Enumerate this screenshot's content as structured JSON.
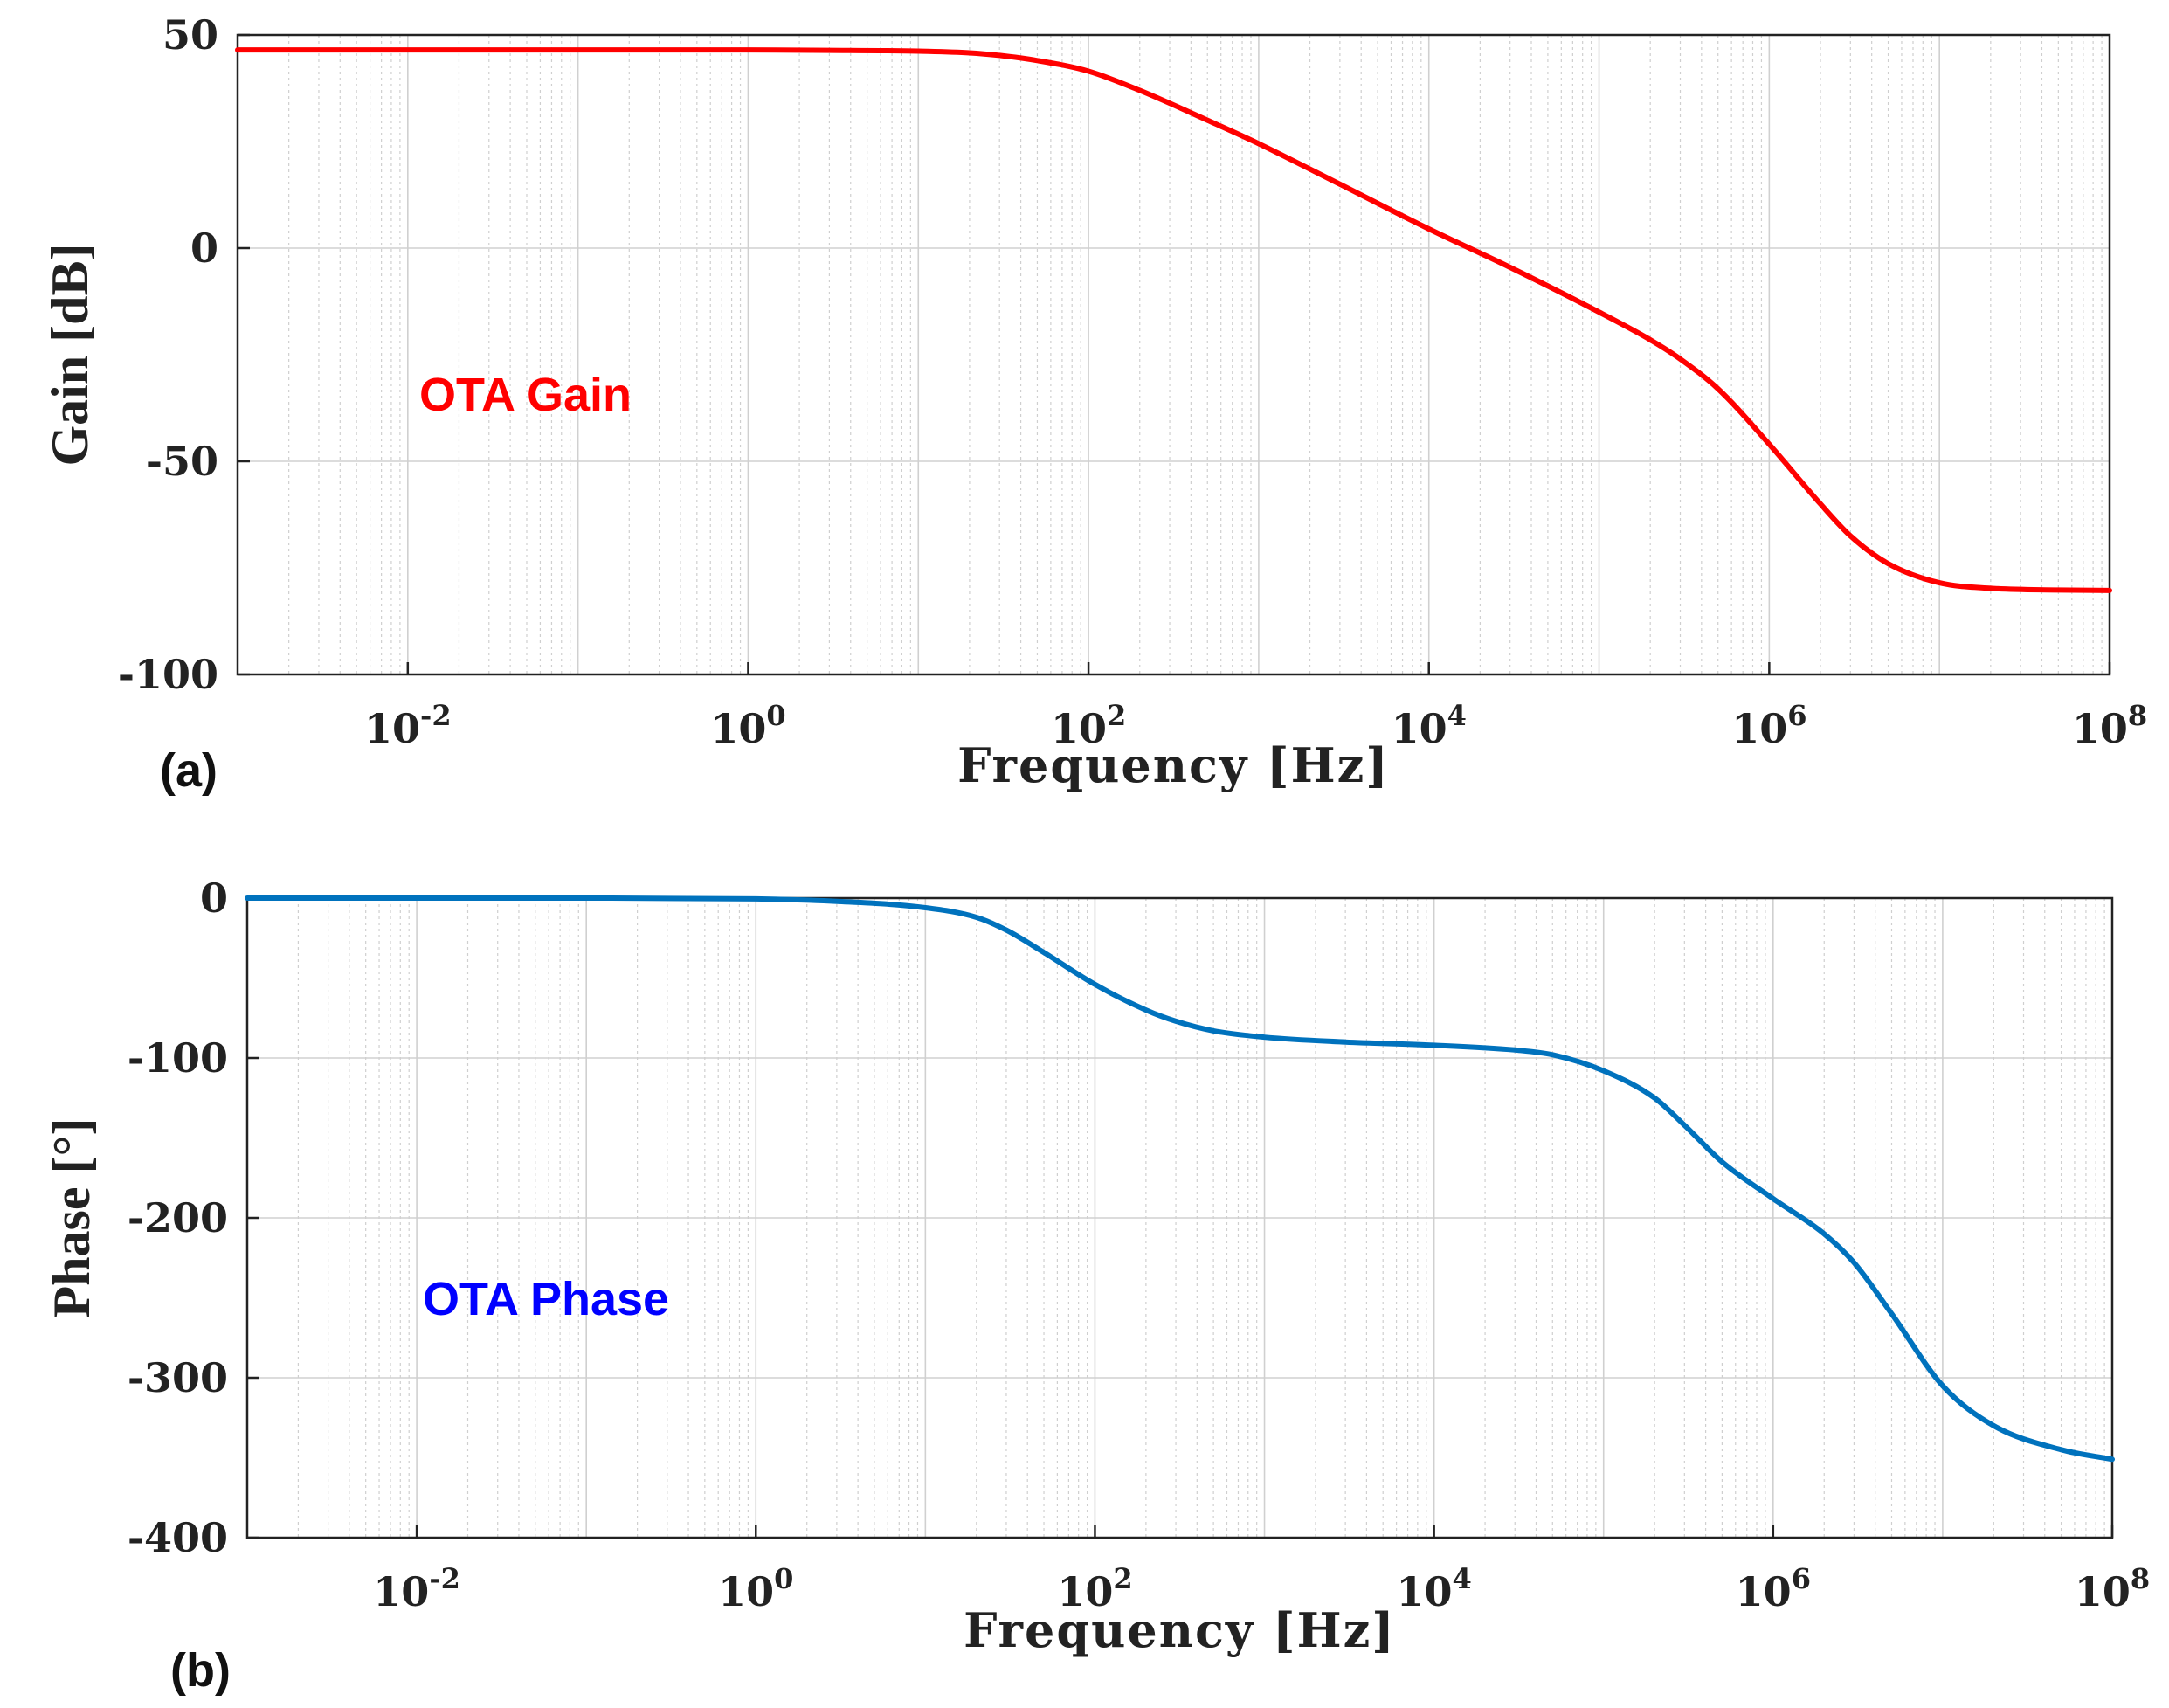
{
  "chart_data": [
    {
      "type": "line",
      "panel_label": "(a)",
      "xlabel": "Frequency [Hz]",
      "ylabel": "Gain [dB]",
      "x_scale": "log",
      "xlim": [
        0.001,
        100000000
      ],
      "ylim": [
        -100,
        50
      ],
      "x_tick_labels": [
        {
          "base": "10",
          "exp": "-2",
          "value": 0.01
        },
        {
          "base": "10",
          "exp": "0",
          "value": 1
        },
        {
          "base": "10",
          "exp": "2",
          "value": 100
        },
        {
          "base": "10",
          "exp": "4",
          "value": 10000
        },
        {
          "base": "10",
          "exp": "6",
          "value": 1000000
        },
        {
          "base": "10",
          "exp": "8",
          "value": 100000000
        }
      ],
      "y_ticks": [
        50,
        0,
        -50,
        -100
      ],
      "y_tick_labels": [
        "50",
        "0",
        "-50",
        "-100"
      ],
      "grid": true,
      "annotation": {
        "text": "OTA Gain",
        "color": "#ff0000"
      },
      "series": [
        {
          "color": "#ff0000",
          "x": [
            0.001,
            0.01,
            0.1,
            1,
            3,
            10,
            20,
            30,
            50,
            100,
            200,
            500,
            1000,
            3000,
            10000,
            30000,
            100000,
            200000,
            300000,
            500000,
            1000000,
            2000000,
            3000000,
            5000000,
            10000000,
            20000000,
            50000000,
            100000000
          ],
          "y": [
            46.5,
            46.5,
            46.5,
            46.5,
            46.4,
            46.2,
            45.8,
            45.2,
            44.0,
            41.5,
            37.0,
            30.0,
            24.5,
            15.0,
            4.5,
            -4.5,
            -15.0,
            -21.5,
            -26.0,
            -33.0,
            -46.0,
            -60.0,
            -67.5,
            -74.0,
            -78.5,
            -79.8,
            -80.2,
            -80.3
          ]
        }
      ]
    },
    {
      "type": "line",
      "panel_label": "(b)",
      "xlabel": "Frequency [Hz]",
      "ylabel": "Phase [°]",
      "x_scale": "log",
      "xlim": [
        0.001,
        100000000
      ],
      "ylim": [
        -400,
        0
      ],
      "x_tick_labels": [
        {
          "base": "10",
          "exp": "-2",
          "value": 0.01
        },
        {
          "base": "10",
          "exp": "0",
          "value": 1
        },
        {
          "base": "10",
          "exp": "2",
          "value": 100
        },
        {
          "base": "10",
          "exp": "4",
          "value": 10000
        },
        {
          "base": "10",
          "exp": "6",
          "value": 1000000
        },
        {
          "base": "10",
          "exp": "8",
          "value": 100000000
        }
      ],
      "y_ticks": [
        0,
        -100,
        -200,
        -300,
        -400
      ],
      "y_tick_labels": [
        "0",
        "-100",
        "-200",
        "-300",
        "-400"
      ],
      "grid": true,
      "annotation": {
        "text": "OTA Phase",
        "color": "#0000ff"
      },
      "series": [
        {
          "color": "#0072bd",
          "x": [
            0.001,
            0.01,
            0.1,
            1,
            3,
            10,
            20,
            30,
            50,
            100,
            200,
            300,
            500,
            1000,
            3000,
            10000,
            30000,
            50000,
            100000,
            200000,
            300000,
            500000,
            1000000,
            2000000,
            3000000,
            5000000,
            10000000,
            20000000,
            50000000,
            100000000
          ],
          "y": [
            0,
            0,
            0,
            -0.5,
            -2,
            -6,
            -12,
            -20,
            -34,
            -54,
            -70,
            -77,
            -83,
            -87,
            -90,
            -92,
            -95,
            -98,
            -108,
            -125,
            -142,
            -165,
            -188,
            -210,
            -228,
            -260,
            -305,
            -330,
            -345,
            -351
          ]
        }
      ]
    }
  ]
}
